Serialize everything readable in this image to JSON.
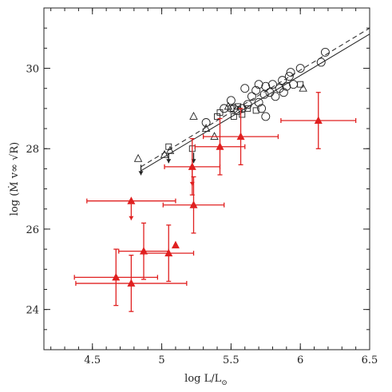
{
  "chart_data": {
    "type": "scatter",
    "xlabel": "log L/L",
    "xlabel_sub": "⊙",
    "ylabel": "log (Ṁ v∞ √R)",
    "xlim": [
      4.15,
      6.5
    ],
    "ylim": [
      23,
      31.5
    ],
    "xticks": [
      4.5,
      5,
      5.5,
      6,
      6.5
    ],
    "xtick_labels": [
      "4.5",
      "5",
      "5.5",
      "6",
      "6.5"
    ],
    "yticks": [
      24,
      26,
      28,
      30
    ],
    "ytick_labels": [
      "24",
      "26",
      "28",
      "30"
    ],
    "grid": false,
    "colors": {
      "red": "#e02020",
      "black": "#222222"
    },
    "series": [
      {
        "marker": "open-circle",
        "points": [
          [
            5.32,
            28.65
          ],
          [
            5.45,
            29.0
          ],
          [
            5.5,
            29.2
          ],
          [
            5.52,
            29.0
          ],
          [
            5.55,
            28.95
          ],
          [
            5.6,
            29.5
          ],
          [
            5.62,
            29.1
          ],
          [
            5.65,
            29.3
          ],
          [
            5.68,
            29.45
          ],
          [
            5.7,
            29.6
          ],
          [
            5.7,
            29.15
          ],
          [
            5.72,
            29.0
          ],
          [
            5.74,
            29.35
          ],
          [
            5.75,
            28.8
          ],
          [
            5.75,
            29.55
          ],
          [
            5.78,
            29.4
          ],
          [
            5.8,
            29.6
          ],
          [
            5.82,
            29.3
          ],
          [
            5.85,
            29.5
          ],
          [
            5.87,
            29.7
          ],
          [
            5.88,
            29.4
          ],
          [
            5.9,
            29.55
          ],
          [
            5.92,
            29.8
          ],
          [
            5.93,
            29.9
          ],
          [
            5.95,
            29.6
          ],
          [
            6.0,
            30.0
          ],
          [
            6.15,
            30.15
          ],
          [
            6.18,
            30.4
          ],
          [
            5.58,
            29.0
          ]
        ]
      },
      {
        "marker": "open-triangle",
        "points": [
          [
            4.83,
            27.75
          ],
          [
            5.02,
            27.85
          ],
          [
            5.06,
            27.95
          ],
          [
            5.23,
            28.8
          ],
          [
            5.32,
            28.5
          ],
          [
            5.38,
            28.3
          ],
          [
            5.48,
            29.05
          ],
          [
            6.02,
            29.5
          ]
        ]
      },
      {
        "marker": "open-square",
        "points": [
          [
            5.05,
            28.05
          ],
          [
            5.22,
            28.0
          ],
          [
            5.4,
            28.8
          ],
          [
            5.42,
            28.9
          ],
          [
            5.5,
            29.0
          ],
          [
            5.52,
            28.8
          ],
          [
            5.55,
            29.05
          ],
          [
            5.58,
            28.85
          ],
          [
            5.62,
            29.0
          ],
          [
            5.68,
            28.95
          ],
          [
            6.0,
            29.6
          ]
        ]
      },
      {
        "marker": "upper-limit-arrow",
        "points": [
          [
            4.85,
            27.6
          ],
          [
            5.05,
            27.9
          ],
          [
            5.23,
            27.9
          ]
        ]
      },
      {
        "marker": "filled-triangle",
        "color": "#e02020",
        "points": [
          {
            "x": 4.67,
            "y": 24.8,
            "xerr": 0.3,
            "yerr": 0.7
          },
          {
            "x": 4.78,
            "y": 24.65,
            "xerr": 0.4,
            "yerr": 0.7
          },
          {
            "x": 4.78,
            "y": 26.7,
            "xerr": 0.32,
            "yerr": 0
          },
          {
            "x": 4.87,
            "y": 25.45,
            "xerr": 0.18,
            "yerr": 0.7
          },
          {
            "x": 5.05,
            "y": 25.4,
            "xerr": 0.18,
            "yerr": 0.7
          },
          {
            "x": 5.1,
            "y": 25.6,
            "xerr": 0,
            "yerr": 0
          },
          {
            "x": 5.22,
            "y": 27.55,
            "xerr": 0.2,
            "yerr": 0.7
          },
          {
            "x": 5.23,
            "y": 26.6,
            "xerr": 0.22,
            "yerr": 0.7
          },
          {
            "x": 5.42,
            "y": 28.05,
            "xerr": 0.18,
            "yerr": 0.7
          },
          {
            "x": 5.57,
            "y": 28.3,
            "xerr": 0.27,
            "yerr": 0.7
          },
          {
            "x": 6.13,
            "y": 28.7,
            "xerr": 0.27,
            "yerr": 0.7
          }
        ],
        "limit_arrows": [
          [
            4.78,
            26.7
          ],
          [
            5.22,
            27.55
          ]
        ]
      },
      {
        "marker": "fit-line-solid",
        "points": [
          [
            4.85,
            27.45
          ],
          [
            6.5,
            30.85
          ]
        ]
      },
      {
        "marker": "fit-line-dashed",
        "points": [
          [
            4.85,
            27.55
          ],
          [
            6.5,
            31.0
          ]
        ]
      }
    ]
  }
}
